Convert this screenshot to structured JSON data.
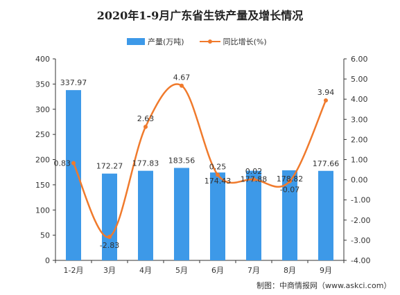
{
  "chart_data": {
    "type": "bar",
    "title": "2020年1-9月广东省生铁产量及增长情况",
    "categories": [
      "1-2月",
      "3月",
      "4月",
      "5月",
      "6月",
      "7月",
      "8月",
      "9月"
    ],
    "series": [
      {
        "name": "产量(万吨)",
        "type": "bar",
        "axis": "left",
        "color": "#3d99e8",
        "values": [
          337.97,
          172.27,
          177.83,
          183.56,
          174.43,
          177.88,
          178.82,
          177.66
        ],
        "labels": [
          "337.97",
          "172.27",
          "177.83",
          "183.56",
          "174.43",
          "177.88",
          "178.82",
          "177.66"
        ]
      },
      {
        "name": "同比增长(%)",
        "type": "line",
        "axis": "right",
        "color": "#f07a2c",
        "values": [
          0.83,
          -2.83,
          2.63,
          4.67,
          0.25,
          0.02,
          -0.07,
          3.94
        ],
        "labels": [
          "0.83",
          "-2.83",
          "2.63",
          "4.67",
          "0.25",
          "0.02",
          "-0.07",
          "3.94"
        ]
      }
    ],
    "y_left": {
      "min": 0,
      "max": 400,
      "ticks": [
        "0",
        "50",
        "100",
        "150",
        "200",
        "250",
        "300",
        "350",
        "400"
      ]
    },
    "y_right": {
      "min": -4,
      "max": 6,
      "ticks": [
        "-4.00",
        "-3.00",
        "-2.00",
        "-1.00",
        "0.00",
        "1.00",
        "2.00",
        "3.00",
        "4.00",
        "5.00",
        "6.00"
      ]
    },
    "grid": false,
    "legend_position": "top-center",
    "source": "制图：中商情报网（www.askci.com）"
  }
}
